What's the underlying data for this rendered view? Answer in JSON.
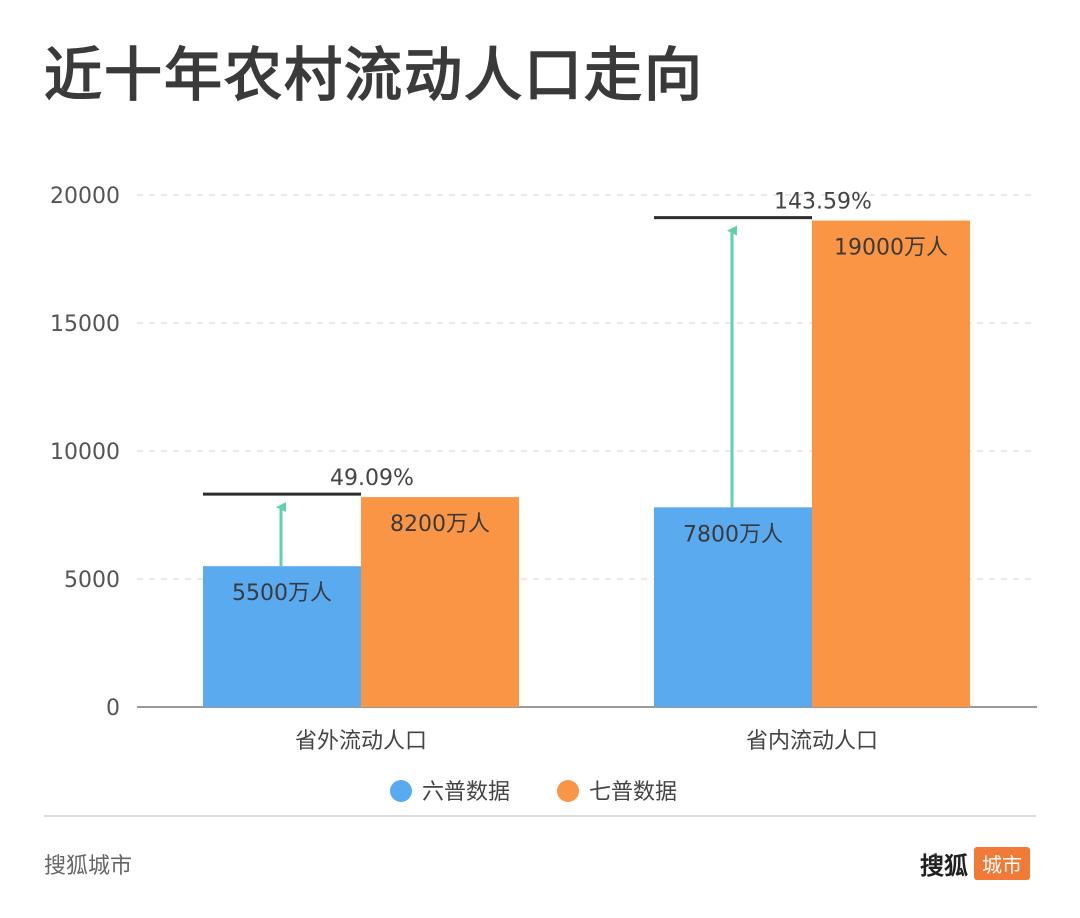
{
  "title": "近十年农村流动人口走向",
  "footer": {
    "source": "搜狐城市",
    "brand_name": "搜狐",
    "brand_tag": "城市"
  },
  "colors": {
    "series1": "#5aaaf0",
    "series2": "#fb9546",
    "arrow": "#5fd3a7",
    "bracket": "#2d2d2d",
    "grid": "#e3e3e3",
    "axis": "#999999"
  },
  "chart_data": {
    "type": "bar",
    "categories": [
      "省外流动人口",
      "省内流动人口"
    ],
    "series": [
      {
        "name": "六普数据",
        "values": [
          5500,
          7800
        ],
        "labels": [
          "5500万人",
          "7800万人"
        ]
      },
      {
        "name": "七普数据",
        "values": [
          8200,
          19000
        ],
        "labels": [
          "8200万人",
          "19000万人"
        ]
      }
    ],
    "growth_labels": [
      "49.09%",
      "143.59%"
    ],
    "ylim": [
      0,
      20000
    ],
    "yticks": [
      0,
      5000,
      10000,
      15000,
      20000
    ],
    "grid": true,
    "legend": "bottom-center",
    "xlabel": "",
    "ylabel": ""
  }
}
